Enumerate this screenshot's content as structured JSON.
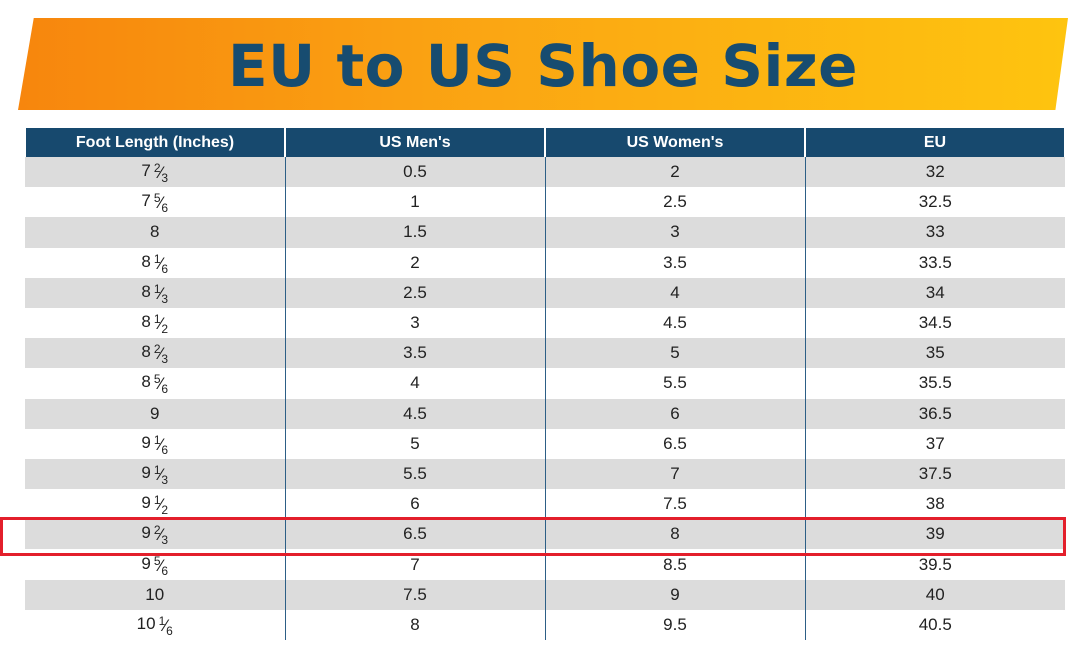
{
  "title": "EU to US Shoe Size",
  "colors": {
    "header_bg": "#17496e",
    "title_text": "#174c70",
    "highlight": "#e31f2b",
    "banner_start": "#f7860d",
    "banner_end": "#fec40f"
  },
  "columns": [
    "Foot Length (Inches)",
    "US Men's",
    "US Women's",
    "EU"
  ],
  "rows": [
    {
      "whole": "7",
      "num": "2",
      "den": "3",
      "men": "0.5",
      "women": "2",
      "eu": "32"
    },
    {
      "whole": "7",
      "num": "5",
      "den": "6",
      "men": "1",
      "women": "2.5",
      "eu": "32.5"
    },
    {
      "whole": "8",
      "num": "",
      "den": "",
      "men": "1.5",
      "women": "3",
      "eu": "33"
    },
    {
      "whole": "8",
      "num": "1",
      "den": "6",
      "men": "2",
      "women": "3.5",
      "eu": "33.5"
    },
    {
      "whole": "8",
      "num": "1",
      "den": "3",
      "men": "2.5",
      "women": "4",
      "eu": "34"
    },
    {
      "whole": "8",
      "num": "1",
      "den": "2",
      "men": "3",
      "women": "4.5",
      "eu": "34.5"
    },
    {
      "whole": "8",
      "num": "2",
      "den": "3",
      "men": "3.5",
      "women": "5",
      "eu": "35"
    },
    {
      "whole": "8",
      "num": "5",
      "den": "6",
      "men": "4",
      "women": "5.5",
      "eu": "35.5"
    },
    {
      "whole": "9",
      "num": "",
      "den": "",
      "men": "4.5",
      "women": "6",
      "eu": "36.5"
    },
    {
      "whole": "9",
      "num": "1",
      "den": "6",
      "men": "5",
      "women": "6.5",
      "eu": "37"
    },
    {
      "whole": "9",
      "num": "1",
      "den": "3",
      "men": "5.5",
      "women": "7",
      "eu": "37.5"
    },
    {
      "whole": "9",
      "num": "1",
      "den": "2",
      "men": "6",
      "women": "7.5",
      "eu": "38"
    },
    {
      "whole": "9",
      "num": "2",
      "den": "3",
      "men": "6.5",
      "women": "8",
      "eu": "39",
      "highlighted": true
    },
    {
      "whole": "9",
      "num": "5",
      "den": "6",
      "men": "7",
      "women": "8.5",
      "eu": "39.5"
    },
    {
      "whole": "10",
      "num": "",
      "den": "",
      "men": "7.5",
      "women": "9",
      "eu": "40"
    },
    {
      "whole": "10",
      "num": "1",
      "den": "6",
      "men": "8",
      "women": "9.5",
      "eu": "40.5"
    }
  ]
}
